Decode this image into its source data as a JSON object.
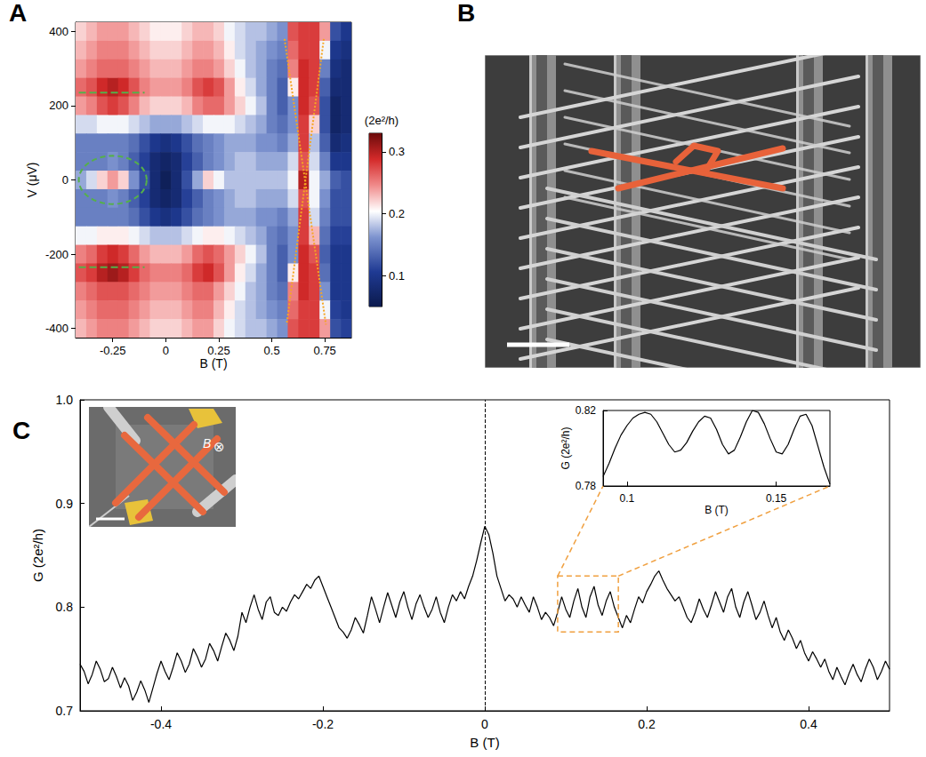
{
  "chart_data": [
    {
      "type": "heatmap",
      "title": "A",
      "xlabel": "B (T)",
      "ylabel": "V (μV)",
      "xlim": [
        -0.425,
        0.875
      ],
      "ylim": [
        -425,
        425
      ],
      "xticks": [
        -0.25,
        0,
        0.25,
        0.5,
        0.75
      ],
      "yticks": [
        -400,
        -200,
        0,
        200,
        400
      ],
      "grid": false,
      "x": [
        -0.4,
        -0.35,
        -0.3,
        -0.25,
        -0.2,
        -0.15,
        -0.1,
        -0.05,
        0,
        0.05,
        0.1,
        0.15,
        0.2,
        0.25,
        0.3,
        0.35,
        0.4,
        0.45,
        0.5,
        0.55,
        0.6,
        0.65,
        0.7,
        0.75,
        0.8,
        0.85
      ],
      "y": [
        400,
        350,
        300,
        250,
        200,
        150,
        100,
        50,
        0,
        -50,
        -100,
        -150,
        -200,
        -250,
        -300,
        -350,
        -400
      ],
      "z": [
        [
          0.22,
          0.23,
          0.24,
          0.24,
          0.24,
          0.23,
          0.22,
          0.21,
          0.21,
          0.21,
          0.22,
          0.23,
          0.23,
          0.22,
          0.2,
          0.19,
          0.18,
          0.18,
          0.17,
          0.16,
          0.27,
          0.28,
          0.28,
          0.24,
          0.12,
          0.1
        ],
        [
          0.23,
          0.24,
          0.25,
          0.25,
          0.25,
          0.24,
          0.23,
          0.22,
          0.22,
          0.22,
          0.23,
          0.24,
          0.24,
          0.23,
          0.21,
          0.19,
          0.18,
          0.17,
          0.16,
          0.15,
          0.26,
          0.28,
          0.28,
          0.2,
          0.1,
          0.09
        ],
        [
          0.24,
          0.25,
          0.26,
          0.26,
          0.26,
          0.25,
          0.24,
          0.23,
          0.23,
          0.23,
          0.24,
          0.25,
          0.25,
          0.24,
          0.22,
          0.2,
          0.18,
          0.17,
          0.15,
          0.14,
          0.25,
          0.29,
          0.28,
          0.15,
          0.09,
          0.08
        ],
        [
          0.26,
          0.27,
          0.29,
          0.3,
          0.29,
          0.27,
          0.25,
          0.24,
          0.24,
          0.24,
          0.25,
          0.27,
          0.28,
          0.27,
          0.24,
          0.21,
          0.19,
          0.17,
          0.15,
          0.13,
          0.21,
          0.29,
          0.28,
          0.13,
          0.08,
          0.08
        ],
        [
          0.24,
          0.25,
          0.27,
          0.28,
          0.27,
          0.25,
          0.23,
          0.22,
          0.22,
          0.22,
          0.23,
          0.25,
          0.26,
          0.26,
          0.24,
          0.22,
          0.2,
          0.18,
          0.15,
          0.13,
          0.16,
          0.29,
          0.27,
          0.12,
          0.07,
          0.08
        ],
        [
          0.19,
          0.19,
          0.2,
          0.2,
          0.2,
          0.19,
          0.18,
          0.17,
          0.17,
          0.17,
          0.18,
          0.19,
          0.2,
          0.2,
          0.2,
          0.19,
          0.18,
          0.17,
          0.15,
          0.14,
          0.16,
          0.28,
          0.22,
          0.12,
          0.07,
          0.08
        ],
        [
          0.15,
          0.15,
          0.15,
          0.15,
          0.15,
          0.14,
          0.12,
          0.1,
          0.09,
          0.1,
          0.12,
          0.14,
          0.15,
          0.16,
          0.17,
          0.17,
          0.17,
          0.16,
          0.16,
          0.15,
          0.17,
          0.28,
          0.18,
          0.13,
          0.08,
          0.09
        ],
        [
          0.15,
          0.15,
          0.15,
          0.16,
          0.15,
          0.13,
          0.11,
          0.08,
          0.07,
          0.08,
          0.11,
          0.13,
          0.15,
          0.16,
          0.17,
          0.18,
          0.18,
          0.17,
          0.17,
          0.17,
          0.19,
          0.27,
          0.19,
          0.15,
          0.1,
          0.1
        ],
        [
          0.17,
          0.19,
          0.22,
          0.24,
          0.22,
          0.16,
          0.12,
          0.08,
          0.06,
          0.08,
          0.12,
          0.17,
          0.22,
          0.2,
          0.18,
          0.18,
          0.18,
          0.18,
          0.18,
          0.18,
          0.2,
          0.3,
          0.2,
          0.17,
          0.13,
          0.12
        ],
        [
          0.15,
          0.15,
          0.15,
          0.16,
          0.15,
          0.13,
          0.11,
          0.08,
          0.07,
          0.08,
          0.11,
          0.13,
          0.15,
          0.16,
          0.17,
          0.18,
          0.18,
          0.17,
          0.17,
          0.17,
          0.19,
          0.27,
          0.2,
          0.16,
          0.12,
          0.12
        ],
        [
          0.15,
          0.15,
          0.15,
          0.15,
          0.15,
          0.14,
          0.12,
          0.1,
          0.09,
          0.1,
          0.12,
          0.14,
          0.15,
          0.16,
          0.17,
          0.17,
          0.17,
          0.16,
          0.16,
          0.15,
          0.17,
          0.28,
          0.19,
          0.15,
          0.12,
          0.12
        ],
        [
          0.2,
          0.2,
          0.21,
          0.21,
          0.21,
          0.2,
          0.19,
          0.18,
          0.18,
          0.18,
          0.19,
          0.2,
          0.21,
          0.21,
          0.2,
          0.19,
          0.18,
          0.17,
          0.15,
          0.14,
          0.16,
          0.28,
          0.23,
          0.14,
          0.11,
          0.11
        ],
        [
          0.25,
          0.26,
          0.28,
          0.29,
          0.28,
          0.26,
          0.24,
          0.23,
          0.23,
          0.23,
          0.24,
          0.26,
          0.27,
          0.26,
          0.24,
          0.22,
          0.2,
          0.18,
          0.15,
          0.13,
          0.16,
          0.29,
          0.27,
          0.13,
          0.1,
          0.1
        ],
        [
          0.27,
          0.28,
          0.3,
          0.31,
          0.3,
          0.28,
          0.26,
          0.25,
          0.25,
          0.25,
          0.26,
          0.28,
          0.29,
          0.27,
          0.24,
          0.21,
          0.19,
          0.17,
          0.15,
          0.13,
          0.21,
          0.29,
          0.28,
          0.14,
          0.1,
          0.1
        ],
        [
          0.25,
          0.26,
          0.27,
          0.27,
          0.27,
          0.26,
          0.25,
          0.24,
          0.24,
          0.24,
          0.25,
          0.26,
          0.26,
          0.24,
          0.22,
          0.2,
          0.18,
          0.17,
          0.15,
          0.14,
          0.25,
          0.29,
          0.28,
          0.16,
          0.1,
          0.1
        ],
        [
          0.24,
          0.25,
          0.26,
          0.26,
          0.26,
          0.25,
          0.24,
          0.23,
          0.23,
          0.23,
          0.24,
          0.25,
          0.25,
          0.23,
          0.21,
          0.19,
          0.18,
          0.17,
          0.16,
          0.15,
          0.26,
          0.28,
          0.28,
          0.2,
          0.11,
          0.1
        ],
        [
          0.23,
          0.24,
          0.25,
          0.25,
          0.25,
          0.24,
          0.23,
          0.22,
          0.22,
          0.22,
          0.23,
          0.24,
          0.24,
          0.22,
          0.2,
          0.19,
          0.18,
          0.18,
          0.17,
          0.16,
          0.27,
          0.28,
          0.28,
          0.24,
          0.12,
          0.11
        ]
      ],
      "colorbar": {
        "label": "(2e²/h)",
        "range": [
          0.05,
          0.33
        ],
        "ticks": [
          0.1,
          0.2,
          0.3
        ]
      },
      "lines": [
        {
          "x": [
            -0.41,
            -0.1
          ],
          "y": [
            235,
            235
          ],
          "color": "#55b04a",
          "line_style": "dashed"
        },
        {
          "x": [
            -0.41,
            -0.1
          ],
          "y": [
            -235,
            -235
          ],
          "color": "#55b04a",
          "line_style": "dashed"
        },
        {
          "x": [
            0.56,
            0.755
          ],
          "y": [
            380,
            -390
          ],
          "color": "#f5a623",
          "line_style": "dotted"
        },
        {
          "x": [
            0.745,
            0.57
          ],
          "y": [
            380,
            -390
          ],
          "color": "#f5a623",
          "line_style": "dotted"
        }
      ],
      "ellipses": [
        {
          "x": [
            -0.41,
            -0.09
          ],
          "y": [
            -65,
            65
          ],
          "color": "#55b04a",
          "line_style": "dashed"
        }
      ]
    },
    {
      "type": "image",
      "title": "B"
    },
    {
      "type": "line",
      "title": "C",
      "xlabel": "B (T)",
      "ylabel": "G (2e²/h)",
      "xlim": [
        -0.5,
        0.5
      ],
      "ylim": [
        0.7,
        1.0
      ],
      "xticks": [
        -0.4,
        -0.2,
        0,
        0.2,
        0.4
      ],
      "yticks": [
        0.7,
        0.8,
        0.9,
        {
          "value": 1,
          "label": "1.0"
        }
      ],
      "grid": false,
      "color": "#000000",
      "x": [
        -0.5,
        -0.495,
        -0.49,
        -0.485,
        -0.48,
        -0.475,
        -0.47,
        -0.465,
        -0.46,
        -0.455,
        -0.45,
        -0.445,
        -0.44,
        -0.435,
        -0.43,
        -0.425,
        -0.42,
        -0.415,
        -0.41,
        -0.405,
        -0.4,
        -0.395,
        -0.39,
        -0.385,
        -0.38,
        -0.375,
        -0.37,
        -0.365,
        -0.36,
        -0.355,
        -0.35,
        -0.345,
        -0.34,
        -0.335,
        -0.33,
        -0.325,
        -0.32,
        -0.315,
        -0.31,
        -0.305,
        -0.3,
        -0.295,
        -0.29,
        -0.285,
        -0.28,
        -0.275,
        -0.27,
        -0.265,
        -0.26,
        -0.255,
        -0.25,
        -0.245,
        -0.24,
        -0.235,
        -0.23,
        -0.225,
        -0.22,
        -0.215,
        -0.21,
        -0.205,
        -0.2,
        -0.195,
        -0.19,
        -0.185,
        -0.18,
        -0.175,
        -0.17,
        -0.165,
        -0.16,
        -0.155,
        -0.15,
        -0.145,
        -0.14,
        -0.135,
        -0.13,
        -0.125,
        -0.12,
        -0.115,
        -0.11,
        -0.105,
        -0.1,
        -0.095,
        -0.09,
        -0.085,
        -0.08,
        -0.075,
        -0.07,
        -0.065,
        -0.06,
        -0.055,
        -0.05,
        -0.045,
        -0.04,
        -0.035,
        -0.03,
        -0.025,
        -0.02,
        -0.015,
        -0.01,
        -0.005,
        0,
        0.005,
        0.01,
        0.015,
        0.02,
        0.025,
        0.03,
        0.035,
        0.04,
        0.045,
        0.05,
        0.055,
        0.06,
        0.065,
        0.07,
        0.075,
        0.08,
        0.085,
        0.09,
        0.095,
        0.1,
        0.105,
        0.11,
        0.115,
        0.12,
        0.125,
        0.13,
        0.135,
        0.14,
        0.145,
        0.15,
        0.155,
        0.16,
        0.165,
        0.17,
        0.175,
        0.18,
        0.185,
        0.19,
        0.195,
        0.2,
        0.205,
        0.21,
        0.215,
        0.22,
        0.225,
        0.23,
        0.235,
        0.24,
        0.245,
        0.25,
        0.255,
        0.26,
        0.265,
        0.27,
        0.275,
        0.28,
        0.285,
        0.29,
        0.295,
        0.3,
        0.305,
        0.31,
        0.315,
        0.32,
        0.325,
        0.33,
        0.335,
        0.34,
        0.345,
        0.35,
        0.355,
        0.36,
        0.365,
        0.37,
        0.375,
        0.38,
        0.385,
        0.39,
        0.395,
        0.4,
        0.405,
        0.41,
        0.415,
        0.42,
        0.425,
        0.43,
        0.435,
        0.44,
        0.445,
        0.45,
        0.455,
        0.46,
        0.465,
        0.47,
        0.475,
        0.48,
        0.485,
        0.49,
        0.495,
        0.5
      ],
      "values": [
        0.745,
        0.738,
        0.726,
        0.735,
        0.748,
        0.74,
        0.728,
        0.731,
        0.742,
        0.733,
        0.722,
        0.732,
        0.724,
        0.71,
        0.718,
        0.729,
        0.72,
        0.708,
        0.722,
        0.736,
        0.748,
        0.738,
        0.73,
        0.742,
        0.756,
        0.748,
        0.737,
        0.745,
        0.76,
        0.752,
        0.742,
        0.75,
        0.765,
        0.758,
        0.748,
        0.762,
        0.775,
        0.768,
        0.758,
        0.772,
        0.795,
        0.785,
        0.8,
        0.812,
        0.798,
        0.788,
        0.805,
        0.81,
        0.795,
        0.792,
        0.8,
        0.796,
        0.805,
        0.812,
        0.808,
        0.815,
        0.822,
        0.818,
        0.826,
        0.83,
        0.82,
        0.81,
        0.8,
        0.79,
        0.78,
        0.776,
        0.77,
        0.778,
        0.79,
        0.783,
        0.775,
        0.792,
        0.81,
        0.798,
        0.785,
        0.8,
        0.814,
        0.802,
        0.79,
        0.805,
        0.815,
        0.8,
        0.788,
        0.803,
        0.812,
        0.8,
        0.79,
        0.798,
        0.81,
        0.795,
        0.785,
        0.8,
        0.812,
        0.806,
        0.815,
        0.808,
        0.82,
        0.83,
        0.845,
        0.862,
        0.878,
        0.87,
        0.852,
        0.83,
        0.818,
        0.806,
        0.812,
        0.808,
        0.8,
        0.81,
        0.802,
        0.795,
        0.81,
        0.8,
        0.788,
        0.795,
        0.79,
        0.782,
        0.795,
        0.81,
        0.798,
        0.79,
        0.806,
        0.818,
        0.8,
        0.79,
        0.81,
        0.82,
        0.802,
        0.792,
        0.806,
        0.815,
        0.8,
        0.79,
        0.78,
        0.792,
        0.785,
        0.798,
        0.81,
        0.804,
        0.815,
        0.822,
        0.83,
        0.835,
        0.826,
        0.818,
        0.812,
        0.806,
        0.81,
        0.8,
        0.79,
        0.785,
        0.795,
        0.808,
        0.798,
        0.79,
        0.802,
        0.815,
        0.805,
        0.795,
        0.81,
        0.818,
        0.8,
        0.79,
        0.805,
        0.815,
        0.802,
        0.788,
        0.795,
        0.806,
        0.792,
        0.78,
        0.79,
        0.776,
        0.768,
        0.778,
        0.77,
        0.76,
        0.768,
        0.756,
        0.748,
        0.757,
        0.75,
        0.742,
        0.75,
        0.738,
        0.73,
        0.742,
        0.733,
        0.725,
        0.736,
        0.745,
        0.735,
        0.728,
        0.74,
        0.75,
        0.742,
        0.73,
        0.738,
        0.748,
        0.74
      ],
      "vlines": [
        0
      ],
      "zoom_box": {
        "x": [
          0.09,
          0.165
        ],
        "y": [
          0.776,
          0.83
        ],
        "color": "#f0a040",
        "line_style": "dashed"
      },
      "annotations": [
        "B",
        "⊗"
      ],
      "inset": {
        "type": "line",
        "xlabel": "B (T)",
        "ylabel": "G (2e²/h)",
        "xlim": [
          0.092,
          0.168
        ],
        "ylim": [
          0.78,
          0.82
        ],
        "xticks": [
          0.1,
          0.15
        ],
        "yticks": [
          0.78,
          0.82
        ],
        "color": "#000000",
        "x": [
          0.092,
          0.094,
          0.096,
          0.098,
          0.1,
          0.102,
          0.104,
          0.106,
          0.108,
          0.11,
          0.112,
          0.114,
          0.116,
          0.118,
          0.12,
          0.122,
          0.124,
          0.126,
          0.128,
          0.13,
          0.132,
          0.134,
          0.136,
          0.138,
          0.14,
          0.142,
          0.144,
          0.146,
          0.148,
          0.15,
          0.152,
          0.154,
          0.156,
          0.158,
          0.16,
          0.162,
          0.164,
          0.166,
          0.168
        ],
        "values": [
          0.785,
          0.792,
          0.8,
          0.807,
          0.812,
          0.816,
          0.818,
          0.819,
          0.818,
          0.814,
          0.808,
          0.802,
          0.798,
          0.799,
          0.803,
          0.809,
          0.814,
          0.817,
          0.816,
          0.81,
          0.802,
          0.797,
          0.799,
          0.806,
          0.814,
          0.82,
          0.819,
          0.813,
          0.805,
          0.798,
          0.797,
          0.802,
          0.81,
          0.817,
          0.818,
          0.812,
          0.801,
          0.79,
          0.781
        ]
      }
    }
  ]
}
